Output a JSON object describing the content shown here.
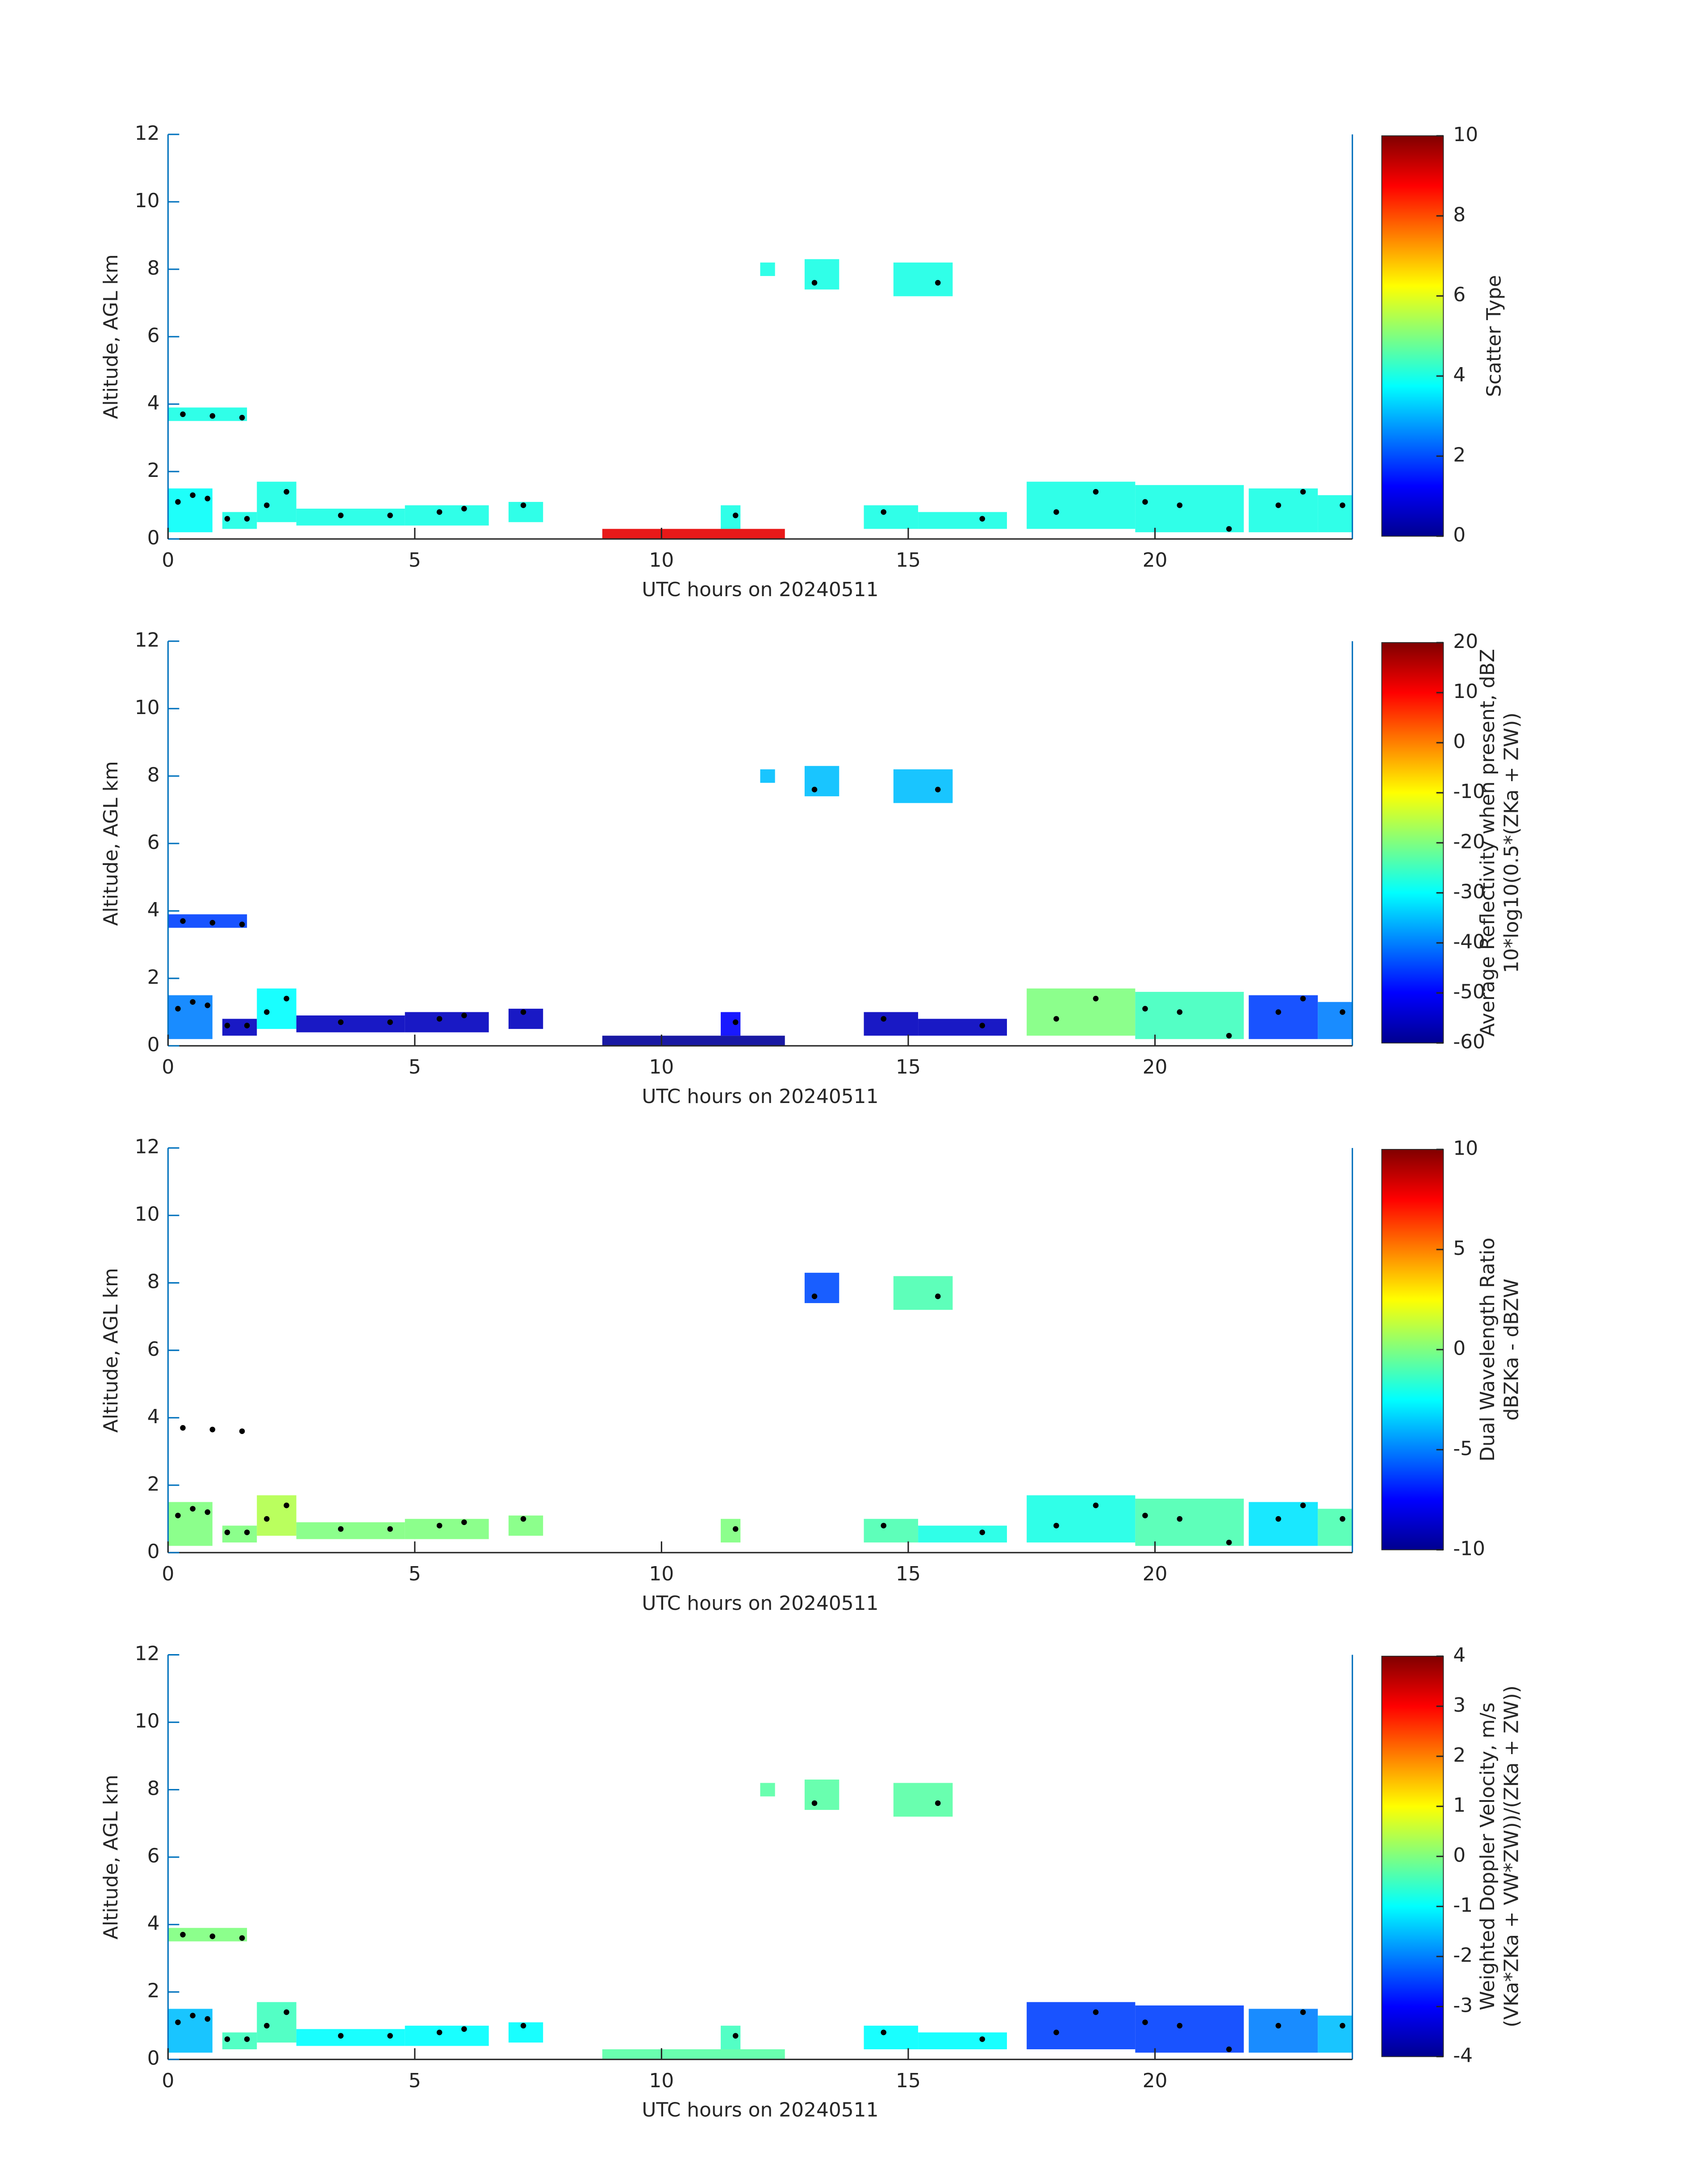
{
  "chart_data": [
    {
      "type": "heatmap",
      "x_label": "UTC hours on 20240511",
      "y_label": "Altitude, AGL km",
      "colorbar_label": [
        "Scatter Type"
      ],
      "colormap": "jet",
      "clim": [
        0,
        10
      ],
      "cticks": [
        0,
        2,
        4,
        6,
        8,
        10
      ],
      "xlim": [
        0,
        24
      ],
      "xticks": [
        0,
        5,
        10,
        15,
        20
      ],
      "ylim": [
        0,
        12
      ],
      "yticks": [
        0,
        2,
        4,
        6,
        8,
        10,
        12
      ],
      "patches": {
        "x0": [
          0,
          0,
          1.1,
          1.8,
          2.6,
          4.8,
          6.9,
          11.2,
          12.0,
          12.9,
          14.1,
          14.7,
          15.2,
          17.4,
          19.6,
          21.9,
          23.3,
          8.8
        ],
        "x1": [
          0.9,
          1.6,
          1.8,
          2.6,
          4.8,
          6.5,
          7.6,
          11.6,
          12.3,
          13.6,
          15.2,
          15.9,
          17.0,
          19.6,
          21.8,
          23.3,
          24,
          12.5
        ],
        "y0": [
          0.2,
          3.5,
          0.3,
          0.5,
          0.4,
          0.4,
          0.5,
          0.3,
          7.8,
          7.4,
          0.3,
          7.2,
          0.3,
          0.3,
          0.2,
          0.2,
          0.2,
          0
        ],
        "y1": [
          1.5,
          3.9,
          0.8,
          1.7,
          0.9,
          1.0,
          1.1,
          1.0,
          8.2,
          8.3,
          1.0,
          8.2,
          0.8,
          1.7,
          1.6,
          1.5,
          1.3,
          0.3
        ],
        "values": [
          3.8,
          4,
          4,
          4,
          4,
          4,
          4,
          4,
          4,
          4,
          4,
          4,
          4,
          4,
          4,
          4,
          4,
          9
        ]
      },
      "points": {
        "x": [
          0.2,
          0.5,
          0.8,
          1.2,
          1.6,
          2.0,
          2.4,
          3.5,
          4.5,
          5.5,
          6.0,
          7.2,
          11.5,
          13.1,
          14.5,
          15.6,
          16.5,
          18.0,
          18.8,
          19.8,
          20.5,
          21.5,
          22.5,
          23.0,
          23.8,
          0.3,
          0.9,
          1.5
        ],
        "y": [
          1.1,
          1.3,
          1.2,
          0.6,
          0.6,
          1.0,
          1.4,
          0.7,
          0.7,
          0.8,
          0.9,
          1.0,
          0.7,
          7.6,
          0.8,
          7.6,
          0.6,
          0.8,
          1.4,
          1.1,
          1.0,
          0.3,
          1.0,
          1.4,
          1.0,
          3.7,
          3.65,
          3.6
        ]
      }
    },
    {
      "type": "heatmap",
      "x_label": "UTC hours on 20240511",
      "y_label": "Altitude, AGL km",
      "colorbar_label": [
        "Average Reflectivity when present, dBZ",
        "10*log10(0.5*(ZKa + ZW))"
      ],
      "colormap": "jet",
      "clim": [
        -60,
        20
      ],
      "cticks": [
        -60,
        -50,
        -40,
        -30,
        -20,
        -10,
        0,
        10,
        20
      ],
      "xlim": [
        0,
        24
      ],
      "xticks": [
        0,
        5,
        10,
        15,
        20
      ],
      "ylim": [
        0,
        12
      ],
      "yticks": [
        0,
        2,
        4,
        6,
        8,
        10,
        12
      ],
      "patches": {
        "x0": [
          0,
          0,
          1.1,
          1.8,
          2.6,
          4.8,
          6.9,
          11.2,
          12.0,
          12.9,
          14.1,
          14.7,
          15.2,
          17.4,
          19.6,
          21.9,
          23.3,
          8.8
        ],
        "x1": [
          0.9,
          1.6,
          1.8,
          2.6,
          4.8,
          6.5,
          7.6,
          11.6,
          12.3,
          13.6,
          15.2,
          15.9,
          17.0,
          19.6,
          21.8,
          23.3,
          24,
          12.5
        ],
        "y0": [
          0.2,
          3.5,
          0.3,
          0.5,
          0.4,
          0.4,
          0.5,
          0.3,
          7.8,
          7.4,
          0.3,
          7.2,
          0.3,
          0.3,
          0.2,
          0.2,
          0.2,
          0
        ],
        "y1": [
          1.5,
          3.9,
          0.8,
          1.7,
          0.9,
          1.0,
          1.1,
          1.0,
          8.2,
          8.3,
          1.0,
          8.2,
          0.8,
          1.7,
          1.6,
          1.5,
          1.3,
          0.3
        ],
        "values": [
          -40,
          -45,
          -55,
          -30,
          -55,
          -55,
          -55,
          -50,
          -35,
          -35,
          -55,
          -35,
          -55,
          -20,
          -25,
          -45,
          -40,
          -58
        ]
      },
      "points": {
        "x": [
          0.2,
          0.5,
          0.8,
          1.2,
          1.6,
          2.0,
          2.4,
          3.5,
          4.5,
          5.5,
          6.0,
          7.2,
          11.5,
          13.1,
          14.5,
          15.6,
          16.5,
          18.0,
          18.8,
          19.8,
          20.5,
          21.5,
          22.5,
          23.0,
          23.8,
          0.3,
          0.9,
          1.5
        ],
        "y": [
          1.1,
          1.3,
          1.2,
          0.6,
          0.6,
          1.0,
          1.4,
          0.7,
          0.7,
          0.8,
          0.9,
          1.0,
          0.7,
          7.6,
          0.8,
          7.6,
          0.6,
          0.8,
          1.4,
          1.1,
          1.0,
          0.3,
          1.0,
          1.4,
          1.0,
          3.7,
          3.65,
          3.6
        ]
      }
    },
    {
      "type": "heatmap",
      "x_label": "UTC hours on 20240511",
      "y_label": "Altitude, AGL km",
      "colorbar_label": [
        "Dual Wavelength Ratio",
        "dBZKa - dBZW"
      ],
      "colormap": "jet",
      "clim": [
        -10,
        10
      ],
      "cticks": [
        -10,
        -5,
        0,
        5,
        10
      ],
      "xlim": [
        0,
        24
      ],
      "xticks": [
        0,
        5,
        10,
        15,
        20
      ],
      "ylim": [
        0,
        12
      ],
      "yticks": [
        0,
        2,
        4,
        6,
        8,
        10,
        12
      ],
      "patches": {
        "x0": [
          0,
          0,
          1.1,
          1.8,
          2.6,
          4.8,
          6.9,
          11.2,
          12.0,
          12.9,
          14.1,
          14.7,
          15.2,
          17.4,
          19.6,
          21.9,
          23.3,
          8.8
        ],
        "x1": [
          0.9,
          1.6,
          1.8,
          2.6,
          4.8,
          6.5,
          7.6,
          11.6,
          12.3,
          13.6,
          15.2,
          15.9,
          17.0,
          19.6,
          21.8,
          23.3,
          24,
          12.5
        ],
        "y0": [
          0.2,
          3.5,
          0.3,
          0.5,
          0.4,
          0.4,
          0.5,
          0.3,
          7.8,
          7.4,
          0.3,
          7.2,
          0.3,
          0.3,
          0.2,
          0.2,
          0.2,
          0
        ],
        "y1": [
          1.5,
          3.9,
          0.8,
          1.7,
          0.9,
          1.0,
          1.1,
          1.0,
          8.2,
          8.3,
          1.0,
          8.2,
          0.8,
          1.7,
          1.6,
          1.5,
          1.3,
          0.3
        ],
        "values": [
          0,
          null,
          0,
          1,
          0,
          0,
          0,
          0,
          null,
          -6,
          -1,
          -1,
          -2,
          -2,
          -1,
          -3,
          -1,
          null
        ]
      },
      "points": {
        "x": [
          0.2,
          0.5,
          0.8,
          1.2,
          1.6,
          2.0,
          2.4,
          3.5,
          4.5,
          5.5,
          6.0,
          7.2,
          11.5,
          13.1,
          14.5,
          15.6,
          16.5,
          18.0,
          18.8,
          19.8,
          20.5,
          21.5,
          22.5,
          23.0,
          23.8,
          0.3,
          0.9,
          1.5
        ],
        "y": [
          1.1,
          1.3,
          1.2,
          0.6,
          0.6,
          1.0,
          1.4,
          0.7,
          0.7,
          0.8,
          0.9,
          1.0,
          0.7,
          7.6,
          0.8,
          7.6,
          0.6,
          0.8,
          1.4,
          1.1,
          1.0,
          0.3,
          1.0,
          1.4,
          1.0,
          3.7,
          3.65,
          3.6
        ]
      }
    },
    {
      "type": "heatmap",
      "x_label": "UTC hours on 20240511",
      "y_label": "Altitude, AGL km",
      "colorbar_label": [
        "Weighted Doppler Velocity, m/s",
        "(VKa*ZKa + VW*ZW))/(ZKa + ZW))"
      ],
      "colormap": "jet",
      "clim": [
        -4,
        4
      ],
      "cticks": [
        -4,
        -3,
        -2,
        -1,
        0,
        1,
        2,
        3,
        4
      ],
      "xlim": [
        0,
        24
      ],
      "xticks": [
        0,
        5,
        10,
        15,
        20
      ],
      "ylim": [
        0,
        12
      ],
      "yticks": [
        0,
        2,
        4,
        6,
        8,
        10,
        12
      ],
      "patches": {
        "x0": [
          0,
          0,
          1.1,
          1.8,
          2.6,
          4.8,
          6.9,
          11.2,
          12.0,
          12.9,
          14.1,
          14.7,
          15.2,
          17.4,
          19.6,
          21.9,
          23.3,
          8.8
        ],
        "x1": [
          0.9,
          1.6,
          1.8,
          2.6,
          4.8,
          6.5,
          7.6,
          11.6,
          12.3,
          13.6,
          15.2,
          15.9,
          17.0,
          19.6,
          21.8,
          23.3,
          24,
          12.5
        ],
        "y0": [
          0.2,
          3.5,
          0.3,
          0.5,
          0.4,
          0.4,
          0.5,
          0.3,
          7.8,
          7.4,
          0.3,
          7.2,
          0.3,
          0.3,
          0.2,
          0.2,
          0.2,
          0
        ],
        "y1": [
          1.5,
          3.9,
          0.8,
          1.7,
          0.9,
          1.0,
          1.1,
          1.0,
          8.2,
          8.3,
          1.0,
          8.2,
          0.8,
          1.7,
          1.6,
          1.5,
          1.3,
          0.3
        ],
        "values": [
          -1.5,
          0,
          -0.5,
          -0.5,
          -1,
          -1,
          -1,
          -0.5,
          -0.3,
          -0.3,
          -1,
          -0.3,
          -1,
          -2.5,
          -2.5,
          -2,
          -1.5,
          -0.3
        ]
      },
      "points": {
        "x": [
          0.2,
          0.5,
          0.8,
          1.2,
          1.6,
          2.0,
          2.4,
          3.5,
          4.5,
          5.5,
          6.0,
          7.2,
          11.5,
          13.1,
          14.5,
          15.6,
          16.5,
          18.0,
          18.8,
          19.8,
          20.5,
          21.5,
          22.5,
          23.0,
          23.8,
          0.3,
          0.9,
          1.5
        ],
        "y": [
          1.1,
          1.3,
          1.2,
          0.6,
          0.6,
          1.0,
          1.4,
          0.7,
          0.7,
          0.8,
          0.9,
          1.0,
          0.7,
          7.6,
          0.8,
          7.6,
          0.6,
          0.8,
          1.4,
          1.1,
          1.0,
          0.3,
          1.0,
          1.4,
          1.0,
          3.7,
          3.65,
          3.6
        ]
      }
    }
  ]
}
